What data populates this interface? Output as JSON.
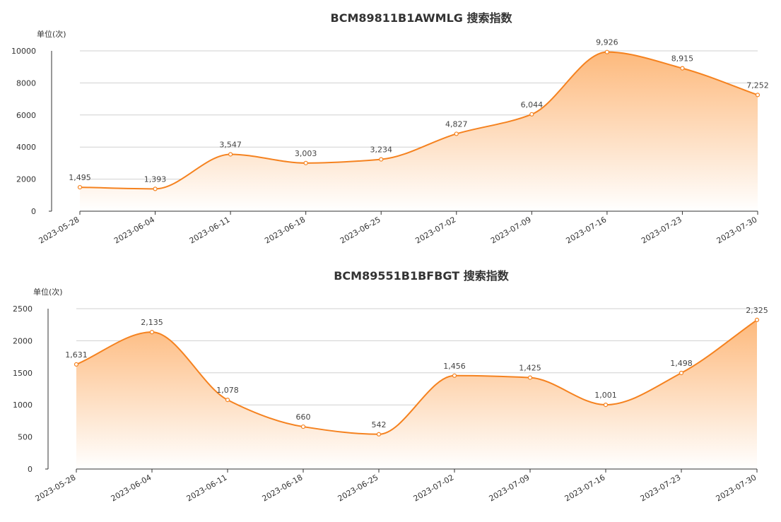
{
  "chart_data": [
    {
      "type": "area",
      "title": "BCM89811B1AWMLG 搜索指数",
      "ylabel": "单位(次)",
      "xlabel": "",
      "ylim": [
        0,
        10000
      ],
      "yticks": [
        0,
        2000,
        4000,
        6000,
        8000,
        10000
      ],
      "grid": true,
      "categories": [
        "2023-05-28",
        "2023-06-04",
        "2023-06-11",
        "2023-06-18",
        "2023-06-25",
        "2023-07-02",
        "2023-07-09",
        "2023-07-16",
        "2023-07-23",
        "2023-07-30"
      ],
      "values": [
        1495,
        1393,
        3547,
        3003,
        3234,
        4827,
        6044,
        9926,
        8915,
        7252
      ],
      "value_labels": [
        "1,495",
        "1,393",
        "3,547",
        "3,003",
        "3,234",
        "4,827",
        "6,044",
        "9,926",
        "8,915",
        "7,252"
      ],
      "colors": {
        "line": "#f5821f",
        "fill_top": "#fdb97c",
        "fill_bottom": "#ffffff"
      }
    },
    {
      "type": "area",
      "title": "BCM89551B1BFBGT 搜索指数",
      "ylabel": "单位(次)",
      "xlabel": "",
      "ylim": [
        0,
        2500
      ],
      "yticks": [
        0,
        500,
        1000,
        1500,
        2000,
        2500
      ],
      "grid": true,
      "categories": [
        "2023-05-28",
        "2023-06-04",
        "2023-06-11",
        "2023-06-18",
        "2023-06-25",
        "2023-07-02",
        "2023-07-09",
        "2023-07-16",
        "2023-07-23",
        "2023-07-30"
      ],
      "values": [
        1631,
        2135,
        1078,
        660,
        542,
        1456,
        1425,
        1001,
        1498,
        2325
      ],
      "value_labels": [
        "1,631",
        "2,135",
        "1,078",
        "660",
        "542",
        "1,456",
        "1,425",
        "1,001",
        "1,498",
        "2,325"
      ],
      "colors": {
        "line": "#f5821f",
        "fill_top": "#fdb97c",
        "fill_bottom": "#ffffff"
      }
    }
  ]
}
